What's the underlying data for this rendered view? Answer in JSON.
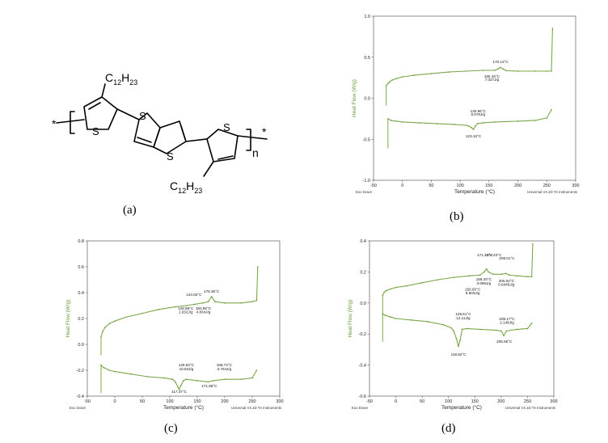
{
  "molecule": {
    "sub_label": "(a)",
    "atom_s": "S",
    "chain_c": "C",
    "chain_c_sub": "12",
    "chain_h": "H",
    "chain_h_sub": "23",
    "repeat_n": "n",
    "end_star": "*"
  },
  "chart_data": [
    {
      "panel": "(b)",
      "type": "line",
      "ylabel": "Heat Flow (W/g)",
      "xlabel": "Temperature (°C)",
      "xlim": [
        -50,
        300
      ],
      "ylim": [
        -1.0,
        1.0
      ],
      "xticks": [
        "-50",
        "0",
        "50",
        "100",
        "150",
        "200",
        "250",
        "300"
      ],
      "yticks": [
        "1.0",
        "0.5",
        "0.0",
        "-0.5",
        "-1.0"
      ],
      "footer_left": "Exo Down",
      "footer_right": "Universal V4.1D TA Instruments",
      "series": [
        {
          "x": [
            -28,
            -25,
            -22,
            -18,
            -10,
            0,
            20,
            50,
            80,
            110,
            140,
            160,
            165,
            170,
            175,
            180,
            200,
            230,
            250,
            258,
            260
          ],
          "y": [
            0.15,
            0.18,
            0.2,
            0.22,
            0.24,
            0.26,
            0.28,
            0.3,
            0.32,
            0.33,
            0.34,
            0.34,
            0.355,
            0.375,
            0.355,
            0.335,
            0.33,
            0.33,
            0.33,
            0.33,
            0.85
          ]
        },
        {
          "x": [
            -25,
            -20,
            -10,
            0,
            30,
            60,
            90,
            110,
            115,
            120,
            123,
            126,
            130,
            140,
            160,
            200,
            230,
            250,
            258
          ],
          "y": [
            -0.25,
            -0.27,
            -0.28,
            -0.29,
            -0.3,
            -0.31,
            -0.32,
            -0.33,
            -0.34,
            -0.36,
            -0.38,
            -0.34,
            -0.31,
            -0.3,
            -0.29,
            -0.28,
            -0.27,
            -0.24,
            -0.14
          ]
        }
      ],
      "annotations": [
        {
          "text": "170.13°C",
          "x": 170,
          "y": 0.43
        },
        {
          "text": "155.16°C",
          "x": 155,
          "y": 0.25
        },
        {
          "text": "7.027J/g",
          "x": 155,
          "y": 0.21
        },
        {
          "text": "130.96°C",
          "x": 131,
          "y": -0.17
        },
        {
          "text": "8.078J/g",
          "x": 131,
          "y": -0.21
        },
        {
          "text": "123.16°C",
          "x": 123,
          "y": -0.48
        }
      ]
    },
    {
      "panel": "(c)",
      "type": "line",
      "ylabel": "Heat Flow (W/g)",
      "xlabel": "Temperature (°C)",
      "xlim": [
        -50,
        300
      ],
      "ylim": [
        -0.4,
        0.8
      ],
      "xticks": [
        "-50",
        "0",
        "50",
        "100",
        "150",
        "200",
        "250",
        "300"
      ],
      "yticks": [
        "0.8",
        "0.6",
        "0.4",
        "0.2",
        "0.0",
        "-0.2",
        "-0.4"
      ],
      "footer_left": "Exo Down",
      "footer_right": "Universal V4.1D TA Instruments",
      "series": [
        {
          "x": [
            -25,
            -22,
            -18,
            -10,
            0,
            20,
            50,
            80,
            110,
            130,
            145,
            160,
            170,
            176,
            182,
            200,
            230,
            250,
            258,
            260
          ],
          "y": [
            0.06,
            0.1,
            0.13,
            0.16,
            0.18,
            0.21,
            0.24,
            0.27,
            0.29,
            0.3,
            0.31,
            0.32,
            0.33,
            0.37,
            0.33,
            0.32,
            0.32,
            0.33,
            0.34,
            0.6
          ]
        },
        {
          "x": [
            -25,
            -20,
            -10,
            0,
            30,
            60,
            90,
            105,
            110,
            115,
            117,
            120,
            125,
            130,
            150,
            170,
            180,
            200,
            230,
            250,
            258
          ],
          "y": [
            -0.16,
            -0.18,
            -0.2,
            -0.21,
            -0.23,
            -0.25,
            -0.26,
            -0.27,
            -0.29,
            -0.33,
            -0.35,
            -0.32,
            -0.28,
            -0.27,
            -0.28,
            -0.29,
            -0.28,
            -0.27,
            -0.27,
            -0.26,
            -0.2
          ]
        }
      ],
      "annotations": [
        {
          "text": "176.36°C",
          "x": 176,
          "y": 0.4
        },
        {
          "text": "144.02°C",
          "x": 144,
          "y": 0.375
        },
        {
          "text": "128.98°C",
          "x": 129,
          "y": 0.27
        },
        {
          "text": "1.032J/g",
          "x": 129,
          "y": 0.24
        },
        {
          "text": "160.96°C",
          "x": 161,
          "y": 0.27
        },
        {
          "text": "4.834J/g",
          "x": 161,
          "y": 0.24
        },
        {
          "text": "129.63°C",
          "x": 130,
          "y": -0.17
        },
        {
          "text": "10.63J/g",
          "x": 130,
          "y": -0.2
        },
        {
          "text": "198.74°C",
          "x": 199,
          "y": -0.17
        },
        {
          "text": "3.704J/g",
          "x": 199,
          "y": -0.2
        },
        {
          "text": "117.47°C",
          "x": 117,
          "y": -0.375
        },
        {
          "text": "171.88°C",
          "x": 172,
          "y": -0.33
        }
      ]
    },
    {
      "panel": "(d)",
      "type": "line",
      "ylabel": "Heat Flow (W/g)",
      "xlabel": "Temperature (°C)",
      "xlim": [
        -50,
        300
      ],
      "ylim": [
        -0.6,
        0.4
      ],
      "xticks": [
        "-50",
        "0",
        "50",
        "100",
        "150",
        "200",
        "250",
        "300"
      ],
      "yticks": [
        "0.4",
        "0.2",
        "0.0",
        "-0.2",
        "-0.4",
        "-0.6"
      ],
      "footer_left": "Exo Down",
      "footer_right": "Universal V4.1D TA Instruments",
      "series": [
        {
          "x": [
            -25,
            -22,
            -18,
            -10,
            0,
            20,
            50,
            80,
            110,
            140,
            160,
            168,
            172,
            176,
            185,
            200,
            209,
            215,
            230,
            250,
            258,
            260
          ],
          "y": [
            0.05,
            0.07,
            0.08,
            0.09,
            0.1,
            0.11,
            0.13,
            0.15,
            0.165,
            0.175,
            0.18,
            0.2,
            0.22,
            0.2,
            0.185,
            0.185,
            0.19,
            0.18,
            0.175,
            0.17,
            0.17,
            0.38
          ]
        },
        {
          "x": [
            -25,
            -20,
            -10,
            0,
            30,
            60,
            90,
            105,
            110,
            115,
            119,
            122,
            126,
            135,
            160,
            190,
            200,
            205,
            210,
            230,
            250,
            258
          ],
          "y": [
            -0.07,
            -0.08,
            -0.09,
            -0.1,
            -0.11,
            -0.12,
            -0.14,
            -0.16,
            -0.18,
            -0.23,
            -0.28,
            -0.24,
            -0.17,
            -0.165,
            -0.17,
            -0.175,
            -0.18,
            -0.21,
            -0.18,
            -0.17,
            -0.165,
            -0.13
          ]
        }
      ],
      "annotations": [
        {
          "text": "171.43°C",
          "x": 169,
          "y": 0.3
        },
        {
          "text": "172.43°C",
          "x": 186,
          "y": 0.3
        },
        {
          "text": "209.01°C",
          "x": 211,
          "y": 0.28
        },
        {
          "text": "158.20°C",
          "x": 167,
          "y": 0.145
        },
        {
          "text": "3.095J/g",
          "x": 167,
          "y": 0.12
        },
        {
          "text": "200.04°C",
          "x": 210,
          "y": 0.135
        },
        {
          "text": "0.6440J/g",
          "x": 210,
          "y": 0.11
        },
        {
          "text": "150.60°C",
          "x": 146,
          "y": 0.08
        },
        {
          "text": "8.603J/g",
          "x": 146,
          "y": 0.055
        },
        {
          "text": "128.51°C",
          "x": 128,
          "y": -0.08
        },
        {
          "text": "12.11J/g",
          "x": 128,
          "y": -0.105
        },
        {
          "text": "209.17°C",
          "x": 211,
          "y": -0.11
        },
        {
          "text": "2.148J/g",
          "x": 211,
          "y": -0.135
        },
        {
          "text": "118.62°C",
          "x": 119,
          "y": -0.34
        },
        {
          "text": "205.55°C",
          "x": 206,
          "y": -0.255
        }
      ]
    }
  ]
}
